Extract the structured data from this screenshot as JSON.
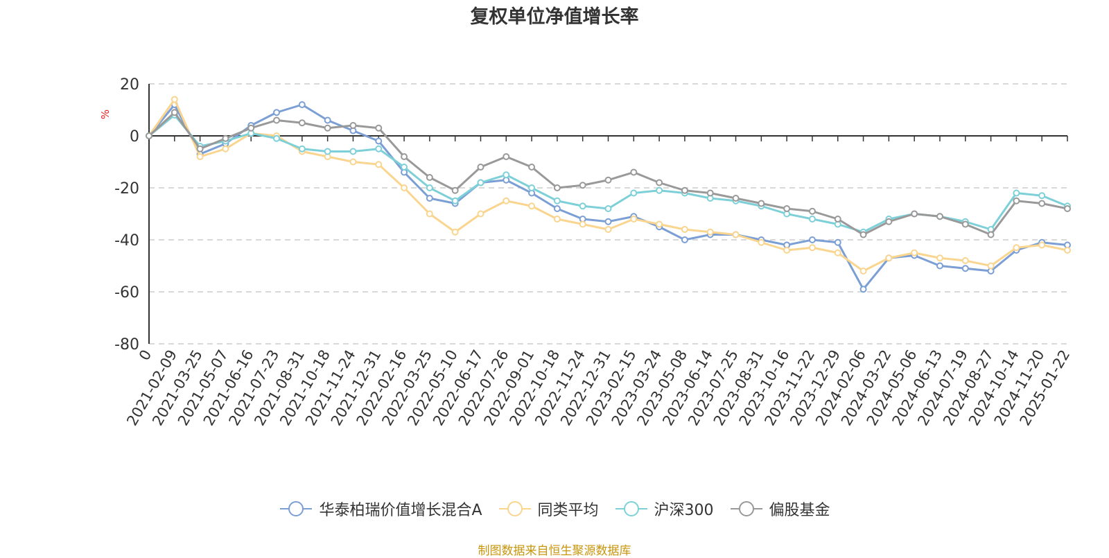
{
  "title": "复权单位净值增长率",
  "source_note": "制图数据来自恒生聚源数据库",
  "chart_data": {
    "type": "line",
    "title": "复权单位净值增长率",
    "ylabel": "%",
    "ylim": [
      -80,
      20
    ],
    "yticks": [
      20,
      0,
      -20,
      -40,
      -60,
      -80
    ],
    "grid": true,
    "legend_position": "bottom",
    "x_tick_labels": [
      "0",
      "2021-02-09",
      "2021-03-25",
      "2021-05-07",
      "2021-06-16",
      "2021-07-23",
      "2021-08-31",
      "2021-10-18",
      "2021-11-24",
      "2021-12-31",
      "2022-02-16",
      "2022-03-25",
      "2022-05-10",
      "2022-06-17",
      "2022-07-26",
      "2022-09-01",
      "2022-10-18",
      "2022-11-24",
      "2022-12-31",
      "2023-02-15",
      "2023-03-24",
      "2023-05-08",
      "2023-06-14",
      "2023-07-25",
      "2023-08-31",
      "2023-10-16",
      "2023-11-22",
      "2023-12-29",
      "2024-02-06",
      "2024-03-22",
      "2024-05-06",
      "2024-06-13",
      "2024-07-19",
      "2024-08-27",
      "2024-10-14",
      "2024-11-20",
      "2025-01-22"
    ],
    "x": [
      0,
      1,
      2,
      3,
      4,
      5,
      6,
      7,
      8,
      9,
      10,
      11,
      12,
      13,
      14,
      15,
      16,
      17,
      18,
      19,
      20,
      21,
      22,
      23,
      24,
      25,
      26,
      27,
      28,
      29,
      30,
      31,
      32,
      33,
      34,
      35,
      36
    ],
    "series": [
      {
        "name": "华泰柏瑞价值增长混合A",
        "color": "#7b9fd4",
        "values": [
          0,
          12,
          -7,
          -3,
          4,
          9,
          12,
          6,
          2,
          -2,
          -14,
          -24,
          -26,
          -18,
          -17,
          -22,
          -28,
          -32,
          -33,
          -31,
          -35,
          -40,
          -38,
          -38,
          -40,
          -42,
          -40,
          -41,
          -59,
          -47,
          -46,
          -50,
          -51,
          -52,
          -44,
          -41,
          -42
        ]
      },
      {
        "name": "同类平均",
        "color": "#f9d58f",
        "values": [
          0,
          14,
          -8,
          -5,
          1,
          0,
          -6,
          -8,
          -10,
          -11,
          -20,
          -30,
          -37,
          -30,
          -25,
          -27,
          -32,
          -34,
          -36,
          -32,
          -34,
          -36,
          -37,
          -38,
          -41,
          -44,
          -43,
          -45,
          -52,
          -47,
          -45,
          -47,
          -48,
          -50,
          -43,
          -42,
          -44
        ]
      },
      {
        "name": "沪深300",
        "color": "#7ed0d8",
        "values": [
          0,
          8,
          -4,
          -2,
          1,
          -1,
          -5,
          -6,
          -6,
          -5,
          -12,
          -20,
          -25,
          -18,
          -15,
          -20,
          -25,
          -27,
          -28,
          -22,
          -21,
          -22,
          -24,
          -25,
          -27,
          -30,
          -32,
          -34,
          -37,
          -32,
          -30,
          -31,
          -33,
          -36,
          -22,
          -23,
          -27
        ]
      },
      {
        "name": "偏股基金",
        "color": "#999999",
        "values": [
          0,
          9,
          -5,
          -1,
          3,
          6,
          5,
          3,
          4,
          3,
          -8,
          -16,
          -21,
          -12,
          -8,
          -12,
          -20,
          -19,
          -17,
          -14,
          -18,
          -21,
          -22,
          -24,
          -26,
          -28,
          -29,
          -32,
          -38,
          -33,
          -30,
          -31,
          -34,
          -38,
          -25,
          -26,
          -28
        ]
      }
    ]
  }
}
